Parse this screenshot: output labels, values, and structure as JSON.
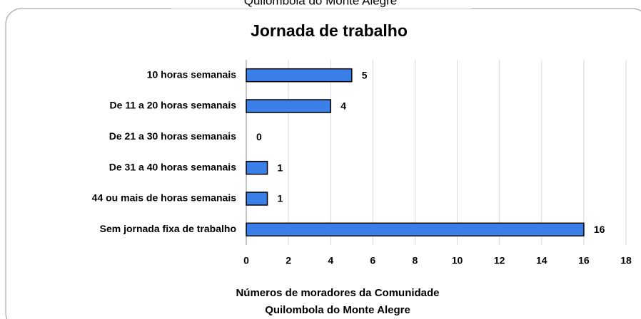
{
  "chart_data": {
    "type": "bar",
    "orientation": "horizontal",
    "overline": "Quilombola do Monte Alegre",
    "title": "Jornada de trabalho",
    "categories": [
      "10 horas semanais",
      "De 11 a  20 horas semanais",
      "De 21 a 30 horas semanais",
      "De 31 a 40 horas semanais",
      "44 ou mais de horas semanais",
      "Sem jornada fixa de trabalho"
    ],
    "values": [
      5,
      4,
      0,
      1,
      1,
      16
    ],
    "color": "#3b80e8",
    "xlim": [
      0,
      18
    ],
    "xticks": [
      0,
      2,
      4,
      6,
      8,
      10,
      12,
      14,
      16,
      18
    ],
    "grid": true,
    "xlabel": [
      "Números de moradores da Comunidade",
      "Quilombola do Monte Alegre"
    ]
  }
}
